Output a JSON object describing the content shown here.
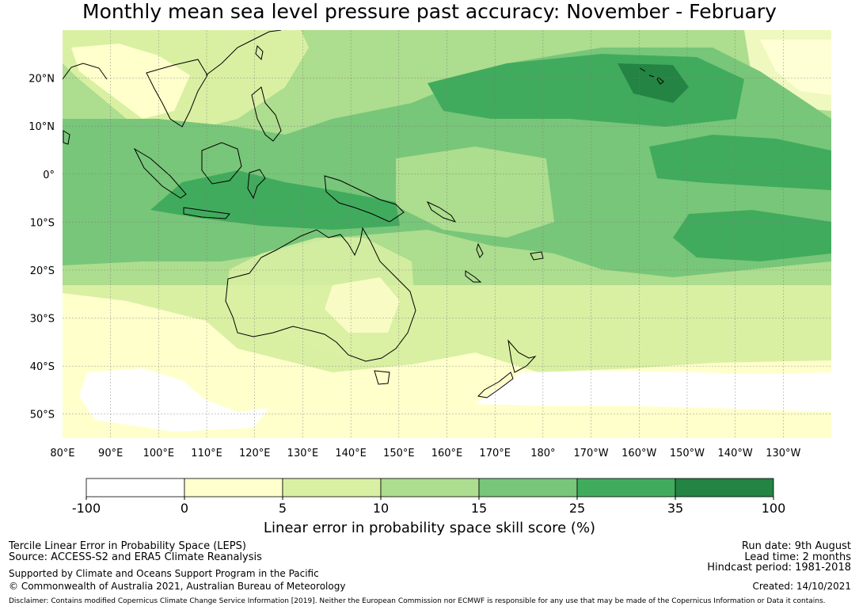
{
  "title": "Monthly mean sea level pressure past accuracy: November - February",
  "map": {
    "lat_range": [
      -55,
      30
    ],
    "lon_range": [
      80,
      240
    ],
    "lat_ticks": [
      {
        "value": 20,
        "label": "20°N"
      },
      {
        "value": 10,
        "label": "10°N"
      },
      {
        "value": 0,
        "label": "0°"
      },
      {
        "value": -10,
        "label": "10°S"
      },
      {
        "value": -20,
        "label": "20°S"
      },
      {
        "value": -30,
        "label": "30°S"
      },
      {
        "value": -40,
        "label": "40°S"
      },
      {
        "value": -50,
        "label": "50°S"
      }
    ],
    "lon_ticks": [
      {
        "value": 80,
        "label": "80°E"
      },
      {
        "value": 90,
        "label": "90°E"
      },
      {
        "value": 100,
        "label": "100°E"
      },
      {
        "value": 110,
        "label": "110°E"
      },
      {
        "value": 120,
        "label": "120°E"
      },
      {
        "value": 130,
        "label": "130°E"
      },
      {
        "value": 140,
        "label": "140°E"
      },
      {
        "value": 150,
        "label": "150°E"
      },
      {
        "value": 160,
        "label": "160°E"
      },
      {
        "value": 170,
        "label": "170°E"
      },
      {
        "value": 180,
        "label": "180°"
      },
      {
        "value": 190,
        "label": "170°W"
      },
      {
        "value": 200,
        "label": "160°W"
      },
      {
        "value": 210,
        "label": "150°W"
      },
      {
        "value": 220,
        "label": "140°W"
      },
      {
        "value": 230,
        "label": "130°W"
      }
    ],
    "grid": true
  },
  "colorbar": {
    "label": "Linear error in probability space skill score (%)",
    "ticks": [
      "-100",
      "0",
      "5",
      "10",
      "15",
      "25",
      "35",
      "100"
    ],
    "colors": [
      "#ffffff",
      "#ffffcc",
      "#d9f0a3",
      "#addd8e",
      "#78c679",
      "#41ab5d",
      "#238443"
    ]
  },
  "footer": {
    "method": "Tercile Linear Error in Probability Space (LEPS)",
    "source": "Source: ACCESS-S2 and ERA5 Climate Reanalysis",
    "support": "Supported by Climate and Oceans Support Program in the Pacific",
    "copyright": "© Commonwealth of Australia 2021, Australian Bureau of Meteorology",
    "run_date": "Run date: 9th August",
    "lead_time": "Lead time: 2 months",
    "hindcast": "Hindcast period: 1981-2018",
    "created": "Created: 14/10/2021",
    "disclaimer": "Disclaimer: Contains modified Copernicus Climate Change Service Information [2019]. Neither the European Commission nor ECMWF is responsible for any use that may be made of the Copernicus Information or Data it contains."
  }
}
